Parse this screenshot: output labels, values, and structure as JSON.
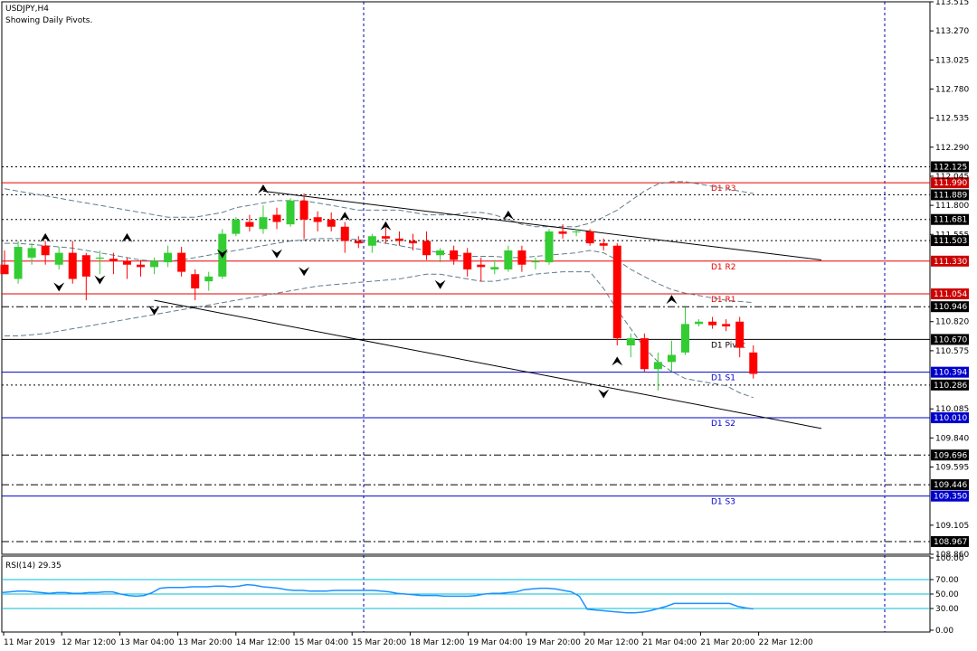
{
  "header": {
    "title": "USDJPY,H4",
    "subtitle": "Showing Daily Pivots."
  },
  "rsi": {
    "label": "RSI(14) 29.35",
    "ticks": [
      "100.00",
      "70.00",
      "50.00",
      "30.00",
      "0.00"
    ],
    "levels": [
      70,
      50,
      30
    ],
    "values": [
      52,
      53,
      54,
      54,
      53,
      52,
      51,
      52,
      52,
      51,
      51,
      52,
      52,
      53,
      53,
      50,
      48,
      47,
      48,
      52,
      58,
      59,
      59,
      59,
      60,
      60,
      60,
      61,
      61,
      60,
      61,
      63,
      62,
      60,
      59,
      58,
      56,
      55,
      55,
      54,
      54,
      54,
      55,
      55,
      55,
      55,
      55,
      55,
      54,
      53,
      51,
      50,
      49,
      48,
      48,
      48,
      47,
      47,
      47,
      47,
      48,
      50,
      51,
      51,
      52,
      53,
      56,
      57,
      58,
      58,
      57,
      55,
      53,
      47,
      29,
      28,
      27,
      26,
      25,
      24,
      24,
      25,
      27,
      30,
      33,
      37,
      37,
      37,
      37,
      37,
      37,
      37,
      37,
      33,
      31,
      29.35
    ]
  },
  "price_scale": {
    "ticks": [
      "113.515",
      "113.270",
      "113.025",
      "112.780",
      "112.535",
      "112.290",
      "112.045",
      "111.800",
      "111.555",
      "110.820",
      "110.575",
      "110.085",
      "109.840",
      "109.595",
      "109.105",
      "108.860"
    ]
  },
  "time_axis": {
    "labels": [
      "11 Mar 2019",
      "12 Mar 12:00",
      "13 Mar 04:00",
      "13 Mar 20:00",
      "14 Mar 12:00",
      "15 Mar 04:00",
      "15 Mar 20:00",
      "18 Mar 12:00",
      "19 Mar 04:00",
      "19 Mar 20:00",
      "20 Mar 12:00",
      "21 Mar 04:00",
      "21 Mar 20:00",
      "22 Mar 12:00"
    ]
  },
  "pivot_levels": [
    {
      "name": "D1  R3",
      "value": 111.99,
      "label": "111.990"
    },
    {
      "name": "D1  R2",
      "value": 111.33,
      "label": "111.330"
    },
    {
      "name": "D1  R1",
      "value": 111.054,
      "label": "111.054"
    },
    {
      "name": "D1  Pivot",
      "value": 110.67,
      "label": "110.670"
    },
    {
      "name": "D1  S1",
      "value": 110.394,
      "label": "110.394"
    },
    {
      "name": "D1  S2",
      "value": 110.01,
      "label": "110.010"
    },
    {
      "name": "D1  S3",
      "value": 109.35,
      "label": "109.350"
    }
  ],
  "horizontal_levels": [
    {
      "value": 112.125,
      "label": "112.125",
      "style": "dot"
    },
    {
      "value": 111.889,
      "label": "111.889",
      "style": "dot"
    },
    {
      "value": 111.681,
      "label": "111.681",
      "style": "dot"
    },
    {
      "value": 111.503,
      "label": "111.503",
      "style": "dot"
    },
    {
      "value": 110.946,
      "label": "110.946",
      "style": "dashdot"
    },
    {
      "value": 110.286,
      "label": "110.286",
      "style": "dot"
    },
    {
      "value": 109.696,
      "label": "109.696",
      "style": "dashdot"
    },
    {
      "value": 109.446,
      "label": "109.446",
      "style": "dashdot"
    },
    {
      "value": 108.967,
      "label": "108.967",
      "style": "dashdot"
    }
  ],
  "colors": {
    "bull": "#33cc33",
    "bear": "#ff0000",
    "pivot_resistance": "#e60000",
    "pivot_support": "#0000cc",
    "pivot_center": "#000000",
    "label_box_dark": "#000000",
    "rsi_line": "#1e90ff",
    "rsi_level": "#00bcd4",
    "separator": "#0000aa"
  },
  "chart_data": {
    "type": "candlestick",
    "title": "USDJPY,H4",
    "subtitle": "Showing Daily Pivots.",
    "ylim": [
      108.86,
      113.515
    ],
    "candles": [
      {
        "o": 111.3,
        "h": 111.42,
        "l": 111.24,
        "c": 111.22
      },
      {
        "o": 111.18,
        "h": 111.5,
        "l": 111.14,
        "c": 111.45
      },
      {
        "o": 111.36,
        "h": 111.48,
        "l": 111.3,
        "c": 111.44
      },
      {
        "o": 111.46,
        "h": 111.5,
        "l": 111.3,
        "c": 111.38
      },
      {
        "o": 111.3,
        "h": 111.45,
        "l": 111.26,
        "c": 111.4
      },
      {
        "o": 111.4,
        "h": 111.5,
        "l": 111.14,
        "c": 111.18
      },
      {
        "o": 111.38,
        "h": 111.4,
        "l": 111.0,
        "c": 111.2
      },
      {
        "o": 111.35,
        "h": 111.42,
        "l": 111.22,
        "c": 111.36
      },
      {
        "o": 111.35,
        "h": 111.4,
        "l": 111.22,
        "c": 111.33
      },
      {
        "o": 111.33,
        "h": 111.36,
        "l": 111.18,
        "c": 111.3
      },
      {
        "o": 111.3,
        "h": 111.34,
        "l": 111.2,
        "c": 111.28
      },
      {
        "o": 111.28,
        "h": 111.36,
        "l": 111.22,
        "c": 111.33
      },
      {
        "o": 111.32,
        "h": 111.46,
        "l": 111.28,
        "c": 111.4
      },
      {
        "o": 111.4,
        "h": 111.45,
        "l": 111.2,
        "c": 111.24
      },
      {
        "o": 111.22,
        "h": 111.26,
        "l": 111.0,
        "c": 111.1
      },
      {
        "o": 111.16,
        "h": 111.24,
        "l": 111.08,
        "c": 111.2
      },
      {
        "o": 111.2,
        "h": 111.6,
        "l": 111.18,
        "c": 111.56
      },
      {
        "o": 111.56,
        "h": 111.7,
        "l": 111.54,
        "c": 111.68
      },
      {
        "o": 111.66,
        "h": 111.72,
        "l": 111.58,
        "c": 111.62
      },
      {
        "o": 111.6,
        "h": 111.8,
        "l": 111.56,
        "c": 111.7
      },
      {
        "o": 111.72,
        "h": 111.78,
        "l": 111.6,
        "c": 111.66
      },
      {
        "o": 111.64,
        "h": 111.86,
        "l": 111.62,
        "c": 111.84
      },
      {
        "o": 111.84,
        "h": 111.9,
        "l": 111.52,
        "c": 111.68
      },
      {
        "o": 111.7,
        "h": 111.75,
        "l": 111.58,
        "c": 111.66
      },
      {
        "o": 111.68,
        "h": 111.74,
        "l": 111.58,
        "c": 111.62
      },
      {
        "o": 111.62,
        "h": 111.66,
        "l": 111.4,
        "c": 111.5
      },
      {
        "o": 111.5,
        "h": 111.54,
        "l": 111.44,
        "c": 111.48
      },
      {
        "o": 111.46,
        "h": 111.56,
        "l": 111.4,
        "c": 111.54
      },
      {
        "o": 111.54,
        "h": 111.66,
        "l": 111.48,
        "c": 111.52
      },
      {
        "o": 111.52,
        "h": 111.58,
        "l": 111.46,
        "c": 111.5
      },
      {
        "o": 111.5,
        "h": 111.56,
        "l": 111.42,
        "c": 111.48
      },
      {
        "o": 111.5,
        "h": 111.58,
        "l": 111.34,
        "c": 111.38
      },
      {
        "o": 111.38,
        "h": 111.44,
        "l": 111.32,
        "c": 111.42
      },
      {
        "o": 111.42,
        "h": 111.46,
        "l": 111.3,
        "c": 111.34
      },
      {
        "o": 111.4,
        "h": 111.44,
        "l": 111.2,
        "c": 111.26
      },
      {
        "o": 111.3,
        "h": 111.36,
        "l": 111.16,
        "c": 111.28
      },
      {
        "o": 111.26,
        "h": 111.34,
        "l": 111.22,
        "c": 111.28
      },
      {
        "o": 111.26,
        "h": 111.46,
        "l": 111.24,
        "c": 111.42
      },
      {
        "o": 111.42,
        "h": 111.46,
        "l": 111.24,
        "c": 111.3
      },
      {
        "o": 111.32,
        "h": 111.36,
        "l": 111.26,
        "c": 111.33
      },
      {
        "o": 111.32,
        "h": 111.6,
        "l": 111.3,
        "c": 111.58
      },
      {
        "o": 111.58,
        "h": 111.64,
        "l": 111.52,
        "c": 111.56
      },
      {
        "o": 111.58,
        "h": 111.6,
        "l": 111.54,
        "c": 111.58
      },
      {
        "o": 111.58,
        "h": 111.6,
        "l": 111.46,
        "c": 111.48
      },
      {
        "o": 111.48,
        "h": 111.52,
        "l": 111.42,
        "c": 111.46
      },
      {
        "o": 111.46,
        "h": 111.48,
        "l": 110.62,
        "c": 110.68
      },
      {
        "o": 110.62,
        "h": 110.72,
        "l": 110.52,
        "c": 110.68
      },
      {
        "o": 110.68,
        "h": 110.72,
        "l": 110.4,
        "c": 110.42
      },
      {
        "o": 110.42,
        "h": 110.56,
        "l": 110.24,
        "c": 110.48
      },
      {
        "o": 110.48,
        "h": 110.66,
        "l": 110.4,
        "c": 110.54
      },
      {
        "o": 110.56,
        "h": 110.94,
        "l": 110.54,
        "c": 110.8
      },
      {
        "o": 110.8,
        "h": 110.84,
        "l": 110.78,
        "c": 110.82
      },
      {
        "o": 110.82,
        "h": 110.86,
        "l": 110.76,
        "c": 110.79
      },
      {
        "o": 110.8,
        "h": 110.84,
        "l": 110.74,
        "c": 110.78
      },
      {
        "o": 110.82,
        "h": 110.86,
        "l": 110.52,
        "c": 110.6
      },
      {
        "o": 110.56,
        "h": 110.62,
        "l": 110.34,
        "c": 110.38
      }
    ],
    "fractals_up": [
      {
        "i": 3,
        "v": 111.52
      },
      {
        "i": 9,
        "v": 111.52
      },
      {
        "i": 19,
        "v": 111.93
      },
      {
        "i": 25,
        "v": 111.7
      },
      {
        "i": 28,
        "v": 111.62
      },
      {
        "i": 37,
        "v": 111.71
      },
      {
        "i": 49,
        "v": 111.0
      },
      {
        "i": 45,
        "v": 110.48
      }
    ],
    "fractals_down": [
      {
        "i": 4,
        "v": 111.12
      },
      {
        "i": 7,
        "v": 111.18
      },
      {
        "i": 11,
        "v": 110.92
      },
      {
        "i": 16,
        "v": 111.4
      },
      {
        "i": 20,
        "v": 111.4
      },
      {
        "i": 22,
        "v": 111.25
      },
      {
        "i": 32,
        "v": 111.14
      },
      {
        "i": 44,
        "v": 110.22
      }
    ],
    "trendlines": [
      {
        "from": {
          "i": 19,
          "v": 111.92
        },
        "to": {
          "i": 60,
          "v": 111.34
        }
      },
      {
        "from": {
          "i": 11,
          "v": 111.0
        },
        "to": {
          "i": 60,
          "v": 109.92
        }
      }
    ],
    "bands_upper": [
      111.94,
      111.92,
      111.9,
      111.88,
      111.86,
      111.84,
      111.82,
      111.8,
      111.78,
      111.76,
      111.74,
      111.72,
      111.7,
      111.7,
      111.7,
      111.72,
      111.74,
      111.78,
      111.8,
      111.82,
      111.84,
      111.84,
      111.84,
      111.82,
      111.8,
      111.78,
      111.76,
      111.76,
      111.76,
      111.76,
      111.74,
      111.72,
      111.72,
      111.72,
      111.74,
      111.74,
      111.72,
      111.68,
      111.64,
      111.62,
      111.62,
      111.62,
      111.62,
      111.65,
      111.7,
      111.76,
      111.84,
      111.92,
      111.98,
      112.0,
      112.0,
      111.98,
      111.96,
      111.94,
      111.92,
      111.9
    ],
    "bands_mid": [
      111.48,
      111.48,
      111.47,
      111.46,
      111.45,
      111.44,
      111.42,
      111.4,
      111.38,
      111.36,
      111.34,
      111.33,
      111.33,
      111.34,
      111.36,
      111.38,
      111.4,
      111.42,
      111.44,
      111.46,
      111.48,
      111.5,
      111.51,
      111.52,
      111.52,
      111.52,
      111.51,
      111.5,
      111.48,
      111.46,
      111.44,
      111.42,
      111.4,
      111.38,
      111.37,
      111.37,
      111.37,
      111.36,
      111.36,
      111.37,
      111.38,
      111.39,
      111.4,
      111.42,
      111.4,
      111.34,
      111.26,
      111.2,
      111.14,
      111.09,
      111.06,
      111.04,
      111.02,
      111.0,
      110.99,
      110.98
    ],
    "bands_lower": [
      110.7,
      110.7,
      110.71,
      110.72,
      110.74,
      110.76,
      110.78,
      110.8,
      110.82,
      110.84,
      110.86,
      110.88,
      110.9,
      110.92,
      110.94,
      110.96,
      110.98,
      111.0,
      111.02,
      111.04,
      111.06,
      111.08,
      111.1,
      111.12,
      111.13,
      111.14,
      111.15,
      111.16,
      111.17,
      111.18,
      111.2,
      111.22,
      111.22,
      111.2,
      111.18,
      111.16,
      111.16,
      111.18,
      111.2,
      111.22,
      111.23,
      111.24,
      111.24,
      111.24,
      111.1,
      110.92,
      110.76,
      110.6,
      110.48,
      110.4,
      110.34,
      110.32,
      110.3,
      110.28,
      110.22,
      110.18
    ]
  }
}
